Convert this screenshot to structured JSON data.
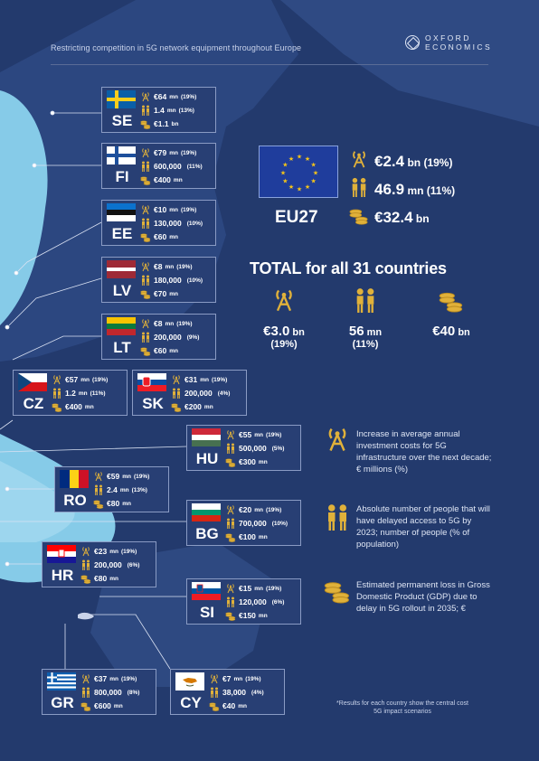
{
  "header": {
    "title": "Restricting competition in 5G network equipment throughout Europe"
  },
  "logo": {
    "line1": "OXFORD",
    "line2": "ECONOMICS"
  },
  "colors": {
    "background": "#1d3060",
    "land": "#2b467e",
    "sea": "#7bc4e4",
    "gold": "#e0b13a",
    "card": "#283f74"
  },
  "countries": [
    {
      "code": "SE",
      "flag": "sweden-flag",
      "investment": "€64",
      "investment_unit": "mn",
      "investment_pct": "(19%)",
      "people": "1.4",
      "people_unit": "mn",
      "people_pct": "(13%)",
      "gdp": "€1.1",
      "gdp_unit": "bn"
    },
    {
      "code": "FI",
      "flag": "finland-flag",
      "investment": "€79",
      "investment_unit": "mn",
      "investment_pct": "(19%)",
      "people": "600,000",
      "people_unit": "",
      "people_pct": "(11%)",
      "gdp": "€400",
      "gdp_unit": "mn"
    },
    {
      "code": "EE",
      "flag": "estonia-flag",
      "investment": "€10",
      "investment_unit": "mn",
      "investment_pct": "(19%)",
      "people": "130,000",
      "people_unit": "",
      "people_pct": "(10%)",
      "gdp": "€60",
      "gdp_unit": "mn"
    },
    {
      "code": "LV",
      "flag": "latvia-flag",
      "investment": "€8",
      "investment_unit": "mn",
      "investment_pct": "(19%)",
      "people": "180,000",
      "people_unit": "",
      "people_pct": "(10%)",
      "gdp": "€70",
      "gdp_unit": "mn"
    },
    {
      "code": "LT",
      "flag": "lithuania-flag",
      "investment": "€8",
      "investment_unit": "mn",
      "investment_pct": "(19%)",
      "people": "200,000",
      "people_unit": "",
      "people_pct": "(9%)",
      "gdp": "€60",
      "gdp_unit": "mn"
    },
    {
      "code": "CZ",
      "flag": "czechia-flag",
      "investment": "€57",
      "investment_unit": "mn",
      "investment_pct": "(19%)",
      "people": "1.2",
      "people_unit": "mn",
      "people_pct": "(11%)",
      "gdp": "€400",
      "gdp_unit": "mn"
    },
    {
      "code": "SK",
      "flag": "slovakia-flag",
      "investment": "€31",
      "investment_unit": "mn",
      "investment_pct": "(19%)",
      "people": "200,000",
      "people_unit": "",
      "people_pct": "(4%)",
      "gdp": "€200",
      "gdp_unit": "mn"
    },
    {
      "code": "HU",
      "flag": "hungary-flag",
      "investment": "€55",
      "investment_unit": "mn",
      "investment_pct": "(19%)",
      "people": "500,000",
      "people_unit": "",
      "people_pct": "(5%)",
      "gdp": "€300",
      "gdp_unit": "mn"
    },
    {
      "code": "RO",
      "flag": "romania-flag",
      "investment": "€59",
      "investment_unit": "mn",
      "investment_pct": "(19%)",
      "people": "2.4",
      "people_unit": "mn",
      "people_pct": "(13%)",
      "gdp": "€80",
      "gdp_unit": "mn"
    },
    {
      "code": "BG",
      "flag": "bulgaria-flag",
      "investment": "€20",
      "investment_unit": "mn",
      "investment_pct": "(19%)",
      "people": "700,000",
      "people_unit": "",
      "people_pct": "(10%)",
      "gdp": "€100",
      "gdp_unit": "mn"
    },
    {
      "code": "HR",
      "flag": "croatia-flag",
      "investment": "€23",
      "investment_unit": "mn",
      "investment_pct": "(19%)",
      "people": "200,000",
      "people_unit": "",
      "people_pct": "(6%)",
      "gdp": "€80",
      "gdp_unit": "mn"
    },
    {
      "code": "SI",
      "flag": "slovenia-flag",
      "investment": "€15",
      "investment_unit": "mn",
      "investment_pct": "(19%)",
      "people": "120,000",
      "people_unit": "",
      "people_pct": "(6%)",
      "gdp": "€150",
      "gdp_unit": "mn"
    },
    {
      "code": "GR",
      "flag": "greece-flag",
      "investment": "€37",
      "investment_unit": "mn",
      "investment_pct": "(19%)",
      "people": "800,000",
      "people_unit": "",
      "people_pct": "(8%)",
      "gdp": "€600",
      "gdp_unit": "mn"
    },
    {
      "code": "CY",
      "flag": "cyprus-flag",
      "investment": "€7",
      "investment_unit": "mn",
      "investment_pct": "(19%)",
      "people": "38,000",
      "people_unit": "",
      "people_pct": "(4%)",
      "gdp": "€40",
      "gdp_unit": "mn"
    }
  ],
  "eu27": {
    "code": "EU27",
    "investment": "€2.4",
    "investment_unit": "bn",
    "investment_pct": "(19%)",
    "people": "46.9",
    "people_unit": "mn",
    "people_pct": "(11%)",
    "gdp": "€32.4",
    "gdp_unit": "bn"
  },
  "total": {
    "title": "TOTAL for all 31 countries",
    "investment": "€3.0",
    "investment_unit": "bn",
    "investment_pct": "(19%)",
    "people": "56",
    "people_unit": "mn",
    "people_pct": "(11%)",
    "gdp": "€40",
    "gdp_unit": "bn"
  },
  "legend": {
    "investment": "Increase in average annual investment costs for 5G infrastructure over the next decade; € millions (%)",
    "people": "Absolute number of people that will have delayed access to 5G by 2023; number of people (% of population)",
    "gdp": "Estimated permanent loss in Gross Domestic Product (GDP) due to delay in 5G rollout in 2035; €"
  },
  "footnote": "*Results for each country show the central cost 5G impact scenarios"
}
